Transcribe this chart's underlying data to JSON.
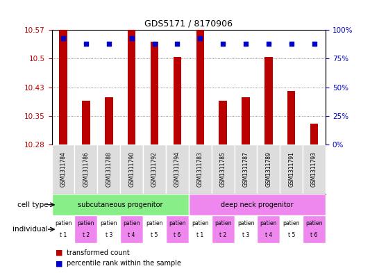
{
  "title": "GDS5171 / 8170906",
  "samples": [
    "GSM1311784",
    "GSM1311786",
    "GSM1311788",
    "GSM1311790",
    "GSM1311792",
    "GSM1311794",
    "GSM1311783",
    "GSM1311785",
    "GSM1311787",
    "GSM1311789",
    "GSM1311791",
    "GSM1311793"
  ],
  "bar_values": [
    10.575,
    10.39,
    10.4,
    10.575,
    10.545,
    10.505,
    10.575,
    10.39,
    10.4,
    10.505,
    10.415,
    10.33
  ],
  "percentile_values": [
    93,
    88,
    88,
    93,
    88,
    88,
    93,
    88,
    88,
    88,
    88,
    88
  ],
  "y_min": 10.275,
  "y_max": 10.575,
  "y_ticks": [
    10.275,
    10.35,
    10.425,
    10.5,
    10.575
  ],
  "y2_ticks": [
    0,
    25,
    50,
    75,
    100
  ],
  "bar_color": "#bb0000",
  "dot_color": "#0000cc",
  "cell_type_labels": [
    "subcutaneous progenitor",
    "deep neck progenitor"
  ],
  "cell_type_groups": [
    6,
    6
  ],
  "cell_type_colors": [
    "#88ee88",
    "#ee88ee"
  ],
  "individual_colors": [
    "#ffffff",
    "#ee88ee",
    "#ffffff",
    "#ee88ee",
    "#ffffff",
    "#ee88ee",
    "#ffffff",
    "#ee88ee",
    "#ffffff",
    "#ee88ee",
    "#ffffff",
    "#ee88ee"
  ],
  "individual_labels_top": [
    "patien",
    "patien",
    "patien",
    "patien",
    "patien",
    "patien",
    "patien",
    "patien",
    "patien",
    "patien",
    "patien",
    "patien"
  ],
  "individual_labels_bot": [
    "t 1",
    "t 2",
    "t 3",
    "t 4",
    "t 5",
    "t 6",
    "t 1",
    "t 2",
    "t 3",
    "t 4",
    "t 5",
    "t 6"
  ],
  "legend_red_label": "transformed count",
  "legend_blue_label": "percentile rank within the sample",
  "bar_width": 0.35,
  "dot_size": 20
}
